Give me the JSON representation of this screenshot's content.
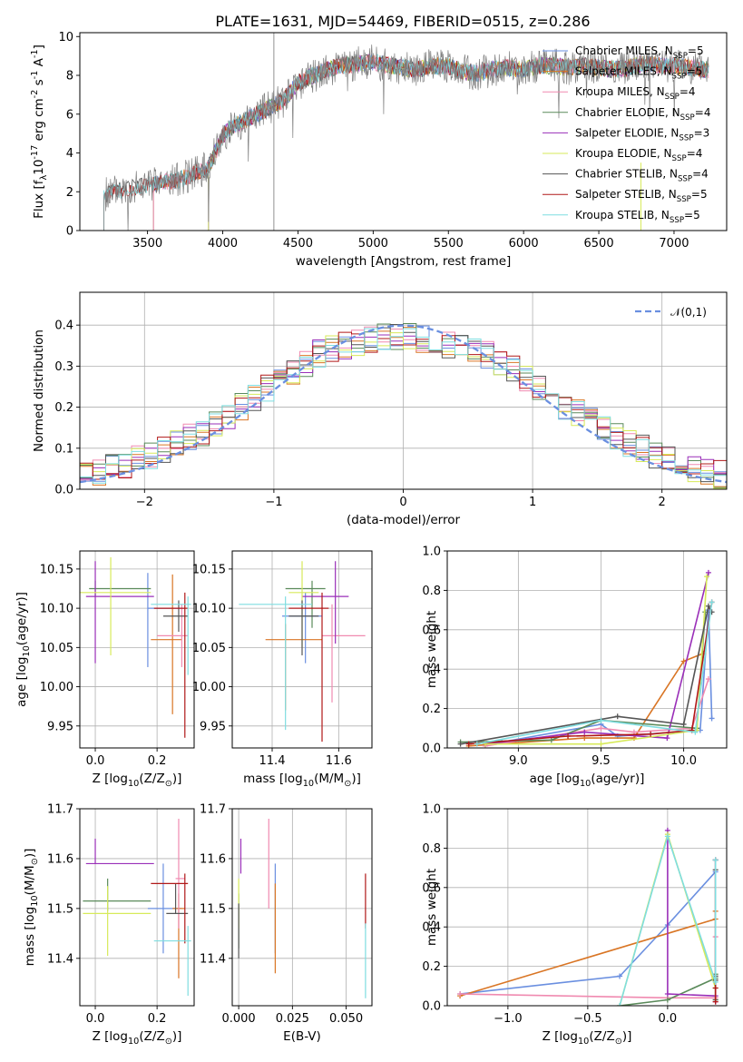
{
  "figure": {
    "title": "PLATE=1631, MJD=54469, FIBERID=0515, z=0.286"
  },
  "palette": [
    "#6a8fe0",
    "#d97524",
    "#f08ab0",
    "#5a8a5a",
    "#9a2fb8",
    "#d7ea5a",
    "#555555",
    "#b01818",
    "#7fdde0"
  ],
  "chart_data": [
    {
      "id": "spectrum",
      "type": "line",
      "xlabel": "wavelength [Angstrom, rest frame]",
      "ylabel": "Flux [f$_\\lambda$10$^{-17}$ erg cm$^{-2}$ s$^{-1}$ A$^{-1}$]",
      "xlim": [
        3050,
        7350
      ],
      "ylim": [
        0,
        10.2
      ],
      "xticks": [
        3500,
        4000,
        4500,
        5000,
        5500,
        6000,
        6500,
        7000
      ],
      "yticks": [
        0,
        2,
        4,
        6,
        8,
        10
      ],
      "grid": false,
      "legend_position": "right",
      "data_color": "#808080",
      "continuum": {
        "x": [
          3200,
          3300,
          3400,
          3500,
          3600,
          3700,
          3800,
          3900,
          3950,
          4000,
          4050,
          4100,
          4200,
          4300,
          4400,
          4500,
          4600,
          4700,
          4800,
          4900,
          5000,
          5100,
          5200,
          5300,
          5400,
          5500,
          5600,
          5700,
          5800,
          5900,
          6000,
          6100,
          6200,
          6300,
          6400,
          6500,
          6600,
          6700,
          6800,
          6900,
          7000,
          7100,
          7200
        ],
        "y": [
          1.8,
          2.1,
          2.2,
          2.3,
          2.5,
          2.6,
          2.9,
          3.2,
          4.0,
          4.9,
          5.3,
          5.5,
          5.9,
          6.3,
          6.7,
          7.6,
          8.0,
          8.3,
          8.5,
          8.6,
          8.7,
          8.5,
          8.4,
          8.3,
          8.5,
          8.5,
          8.2,
          8.1,
          8.3,
          8.4,
          8.3,
          8.5,
          8.5,
          8.4,
          8.5,
          8.4,
          8.3,
          8.4,
          8.6,
          8.5,
          8.5,
          8.4,
          8.3
        ]
      },
      "series": [
        {
          "name": "Chabrier MILES, N$_{SSP}$=5",
          "start": 3540
        },
        {
          "name": "Salpeter MILES, N$_{SSP}$=5",
          "start": 3540
        },
        {
          "name": "Kroupa MILES, N$_{SSP}$=4",
          "start": 3540
        },
        {
          "name": "Chabrier ELODIE, N$_{SSP}$=4",
          "start": 3905
        },
        {
          "name": "Salpeter ELODIE, N$_{SSP}$=3",
          "start": 3905
        },
        {
          "name": "Kroupa ELODIE, N$_{SSP}$=4",
          "start": 3905
        },
        {
          "name": "Chabrier STELIB, N$_{SSP}$=4",
          "start": 3210
        },
        {
          "name": "Salpeter STELIB, N$_{SSP}$=5",
          "start": 3210
        },
        {
          "name": "Kroupa STELIB, N$_{SSP}$=5",
          "start": 3210
        }
      ]
    },
    {
      "id": "residuals",
      "type": "line",
      "xlabel": "(data-model)/error",
      "ylabel": "Normed distribution",
      "xlim": [
        -2.5,
        2.5
      ],
      "ylim": [
        0,
        0.48
      ],
      "xticks": [
        -2,
        -1,
        0,
        1,
        2
      ],
      "yticks": [
        0.0,
        0.1,
        0.2,
        0.3,
        0.4
      ],
      "grid": true,
      "legend_position": "top-right",
      "gaussian": {
        "label": "$\\mathcal{N}(0,1)$",
        "color": "#6a8fe0",
        "mean": 0,
        "sigma": 1
      },
      "hist_centers": [
        -2.45,
        -2.35,
        -2.25,
        -2.15,
        -2.05,
        -1.95,
        -1.85,
        -1.75,
        -1.65,
        -1.55,
        -1.45,
        -1.35,
        -1.25,
        -1.15,
        -1.05,
        -0.95,
        -0.85,
        -0.75,
        -0.65,
        -0.55,
        -0.45,
        -0.35,
        -0.25,
        -0.15,
        -0.05,
        0.05,
        0.15,
        0.25,
        0.35,
        0.45,
        0.55,
        0.65,
        0.75,
        0.85,
        0.95,
        1.05,
        1.15,
        1.25,
        1.35,
        1.45,
        1.55,
        1.65,
        1.75,
        1.85,
        1.95,
        2.05,
        2.15,
        2.25,
        2.35,
        2.45
      ],
      "hist_base": [
        0.038,
        0.045,
        0.053,
        0.061,
        0.071,
        0.083,
        0.095,
        0.11,
        0.125,
        0.14,
        0.16,
        0.18,
        0.2,
        0.22,
        0.245,
        0.265,
        0.285,
        0.305,
        0.33,
        0.345,
        0.35,
        0.355,
        0.365,
        0.37,
        0.375,
        0.375,
        0.365,
        0.36,
        0.355,
        0.35,
        0.34,
        0.325,
        0.305,
        0.29,
        0.27,
        0.25,
        0.225,
        0.205,
        0.19,
        0.17,
        0.15,
        0.13,
        0.115,
        0.1,
        0.085,
        0.07,
        0.06,
        0.05,
        0.043,
        0.036
      ]
    },
    {
      "id": "age_vs_z",
      "type": "scatter",
      "xlabel": "Z [log$_{10}$($Z/Z_\\odot$)]",
      "ylabel": "age  [log$_{10}$($age/yr$)]",
      "xlim": [
        -0.05,
        0.32
      ],
      "ylim": [
        9.922,
        10.173
      ],
      "xticks": [
        0.0,
        0.2
      ],
      "yticks": [
        9.95,
        10.0,
        10.05,
        10.1,
        10.15
      ],
      "grid": true,
      "points": [
        {
          "x": 0.17,
          "xerr": [
            0.0,
            0.12
          ],
          "y": 10.1,
          "yerr": [
            0.075,
            0.045
          ]
        },
        {
          "x": 0.25,
          "xerr": [
            0.07,
            0.03
          ],
          "y": 10.06,
          "yerr": [
            0.095,
            0.083
          ]
        },
        {
          "x": 0.28,
          "xerr": [
            0.08,
            0.02
          ],
          "y": 10.065,
          "yerr": [
            0.04,
            0.04
          ]
        },
        {
          "x": 0.0,
          "xerr": [
            0.02,
            0.18
          ],
          "y": 10.125,
          "yerr": [
            0.01,
            0.01
          ]
        },
        {
          "x": 0.0,
          "xerr": [
            0.03,
            0.19
          ],
          "y": 10.115,
          "yerr": [
            0.085,
            0.045
          ]
        },
        {
          "x": 0.05,
          "xerr": [
            0.12,
            0.13
          ],
          "y": 10.12,
          "yerr": [
            0.08,
            0.045
          ]
        },
        {
          "x": 0.27,
          "xerr": [
            0.05,
            0.03
          ],
          "y": 10.09,
          "yerr": [
            0.02,
            0.02
          ]
        },
        {
          "x": 0.29,
          "xerr": [
            0.1,
            0.01
          ],
          "y": 10.1,
          "yerr": [
            0.165,
            0.02
          ]
        },
        {
          "x": 0.3,
          "xerr": [
            0.12,
            0.01
          ],
          "y": 10.105,
          "yerr": [
            0.09,
            0.01
          ]
        }
      ]
    },
    {
      "id": "age_vs_mass",
      "type": "scatter",
      "xlabel": "mass [log$_{10}$($M/M_\\odot$)]",
      "ylabel": "",
      "xlim": [
        11.28,
        11.7
      ],
      "ylim": [
        9.922,
        10.173
      ],
      "xticks": [
        11.4,
        11.6
      ],
      "yticks": [
        9.95,
        10.0,
        10.05,
        10.1,
        10.15
      ],
      "grid": true,
      "points": [
        {
          "x": 11.5,
          "xerr": [
            0.07,
            0.05
          ],
          "y": 10.09,
          "yerr": [
            0.06,
            0.03
          ]
        },
        {
          "x": 11.44,
          "xerr": [
            0.06,
            0.11
          ],
          "y": 10.06,
          "yerr": [
            0.09,
            0.02
          ]
        },
        {
          "x": 11.58,
          "xerr": [
            0.03,
            0.1
          ],
          "y": 10.065,
          "yerr": [
            0.085,
            0.04
          ]
        },
        {
          "x": 11.52,
          "xerr": [
            0.08,
            0.04
          ],
          "y": 10.125,
          "yerr": [
            0.05,
            0.01
          ]
        },
        {
          "x": 11.59,
          "xerr": [
            0.1,
            0.04
          ],
          "y": 10.115,
          "yerr": [
            0.06,
            0.045
          ]
        },
        {
          "x": 11.49,
          "xerr": [
            0.04,
            0.05
          ],
          "y": 10.12,
          "yerr": [
            0.07,
            0.04
          ]
        },
        {
          "x": 11.49,
          "xerr": [
            0.04,
            0.05
          ],
          "y": 10.09,
          "yerr": [
            0.05,
            0.02
          ]
        },
        {
          "x": 11.55,
          "xerr": [
            0.1,
            0.02
          ],
          "y": 10.1,
          "yerr": [
            0.17,
            0.02
          ]
        },
        {
          "x": 11.44,
          "xerr": [
            0.14,
            0.08
          ],
          "y": 10.105,
          "yerr": [
            0.16,
            0.01
          ]
        }
      ]
    },
    {
      "id": "weight_vs_age",
      "type": "line",
      "xlabel": "age  [log$_{10}$($age/yr$)]",
      "ylabel": "mass weight",
      "xlim": [
        8.57,
        10.26
      ],
      "ylim": [
        0,
        1.0
      ],
      "xticks": [
        9.0,
        9.5,
        10.0
      ],
      "yticks": [
        0.0,
        0.2,
        0.4,
        0.6,
        0.8,
        1.0
      ],
      "grid": true,
      "series": [
        {
          "x": [
            8.9,
            9.5,
            9.6,
            10.1,
            10.15,
            10.17
          ],
          "y": [
            0.03,
            0.12,
            0.06,
            0.09,
            0.7,
            0.15
          ]
        },
        {
          "x": [
            8.7,
            9.4,
            9.7,
            10.0,
            10.12
          ],
          "y": [
            0.01,
            0.05,
            0.05,
            0.44,
            0.48
          ]
        },
        {
          "x": [
            8.8,
            9.5,
            9.7,
            10.05,
            10.15
          ],
          "y": [
            0.01,
            0.1,
            0.08,
            0.1,
            0.35
          ]
        },
        {
          "x": [
            8.65,
            9.2,
            9.5,
            10.08,
            10.13
          ],
          "y": [
            0.03,
            0.04,
            0.14,
            0.1,
            0.69
          ]
        },
        {
          "x": [
            8.8,
            9.4,
            9.9,
            10.15
          ],
          "y": [
            0.02,
            0.08,
            0.05,
            0.89
          ]
        },
        {
          "x": [
            8.8,
            9.5,
            10.08,
            10.14
          ],
          "y": [
            0.02,
            0.02,
            0.09,
            0.87
          ]
        },
        {
          "x": [
            8.65,
            9.6,
            10.0,
            10.15,
            10.17
          ],
          "y": [
            0.02,
            0.16,
            0.12,
            0.72,
            0.69
          ]
        },
        {
          "x": [
            8.7,
            9.3,
            9.8,
            10.05,
            10.17
          ],
          "y": [
            0.02,
            0.06,
            0.07,
            0.09,
            0.74
          ]
        },
        {
          "x": [
            8.75,
            9.5,
            10.07,
            10.17
          ],
          "y": [
            0.02,
            0.14,
            0.08,
            0.74
          ]
        }
      ]
    },
    {
      "id": "mass_vs_z",
      "type": "scatter",
      "xlabel": "Z [log$_{10}$($Z/Z_\\odot$)]",
      "ylabel": "mass [log$_{10}$($M/M_\\odot$)]",
      "xlim": [
        -0.05,
        0.32
      ],
      "ylim": [
        11.305,
        11.7
      ],
      "xticks": [
        0.0,
        0.2
      ],
      "yticks": [
        11.4,
        11.5,
        11.6,
        11.7
      ],
      "grid": true,
      "points": [
        {
          "x": 0.22,
          "xerr": [
            0.05,
            0.06
          ],
          "y": 11.5,
          "yerr": [
            0.09,
            0.09
          ]
        },
        {
          "x": 0.27,
          "xerr": [
            0.02,
            0.02
          ],
          "y": 11.5,
          "yerr": [
            0.14,
            0.03
          ]
        },
        {
          "x": 0.27,
          "xerr": [
            0.01,
            0.02
          ],
          "y": 11.56,
          "yerr": [
            0.1,
            0.12
          ]
        },
        {
          "x": 0.04,
          "xerr": [
            0.08,
            0.14
          ],
          "y": 11.515,
          "yerr": [
            0.02,
            0.045
          ]
        },
        {
          "x": 0.0,
          "xerr": [
            0.03,
            0.19
          ],
          "y": 11.59,
          "yerr": [
            0.0,
            0.05
          ]
        },
        {
          "x": 0.04,
          "xerr": [
            0.08,
            0.14
          ],
          "y": 11.49,
          "yerr": [
            0.085,
            0.055
          ]
        },
        {
          "x": 0.26,
          "xerr": [
            0.03,
            0.04
          ],
          "y": 11.49,
          "yerr": [
            0.0,
            0.06
          ]
        },
        {
          "x": 0.29,
          "xerr": [
            0.11,
            0.01
          ],
          "y": 11.55,
          "yerr": [
            0.12,
            0.02
          ]
        },
        {
          "x": 0.3,
          "xerr": [
            0.11,
            0.01
          ],
          "y": 11.435,
          "yerr": [
            0.11,
            0.03
          ]
        }
      ]
    },
    {
      "id": "mass_vs_ebv",
      "type": "scatter",
      "xlabel": "E(B-V)",
      "ylabel": "",
      "xlim": [
        -0.003,
        0.062
      ],
      "ylim": [
        11.305,
        11.7
      ],
      "xticks": [
        0.0,
        0.025,
        0.05
      ],
      "yticks": [
        11.4,
        11.5,
        11.6,
        11.7
      ],
      "grid": true,
      "points": [
        {
          "x": 0.017,
          "y": 11.53,
          "yerr": [
            0.12,
            0.06
          ]
        },
        {
          "x": 0.017,
          "y": 11.47,
          "yerr": [
            0.1,
            0.08
          ]
        },
        {
          "x": 0.014,
          "y": 11.6,
          "yerr": [
            0.1,
            0.08
          ]
        },
        {
          "x": 0.0,
          "y": 11.48,
          "yerr": [
            0.06,
            0.05
          ]
        },
        {
          "x": 0.001,
          "y": 11.57,
          "yerr": [
            0.0,
            0.07
          ]
        },
        {
          "x": 0.0,
          "y": 11.51,
          "yerr": [
            0.05,
            0.05
          ]
        },
        {
          "x": 0.0,
          "y": 11.46,
          "yerr": [
            0.06,
            0.05
          ]
        },
        {
          "x": 0.059,
          "y": 11.52,
          "yerr": [
            0.06,
            0.05
          ]
        },
        {
          "x": 0.059,
          "y": 11.42,
          "yerr": [
            0.1,
            0.05
          ]
        }
      ]
    },
    {
      "id": "weight_vs_z",
      "type": "line",
      "xlabel": "Z [log$_{10}$($Z/Z_\\odot$)]",
      "ylabel": "mass weight",
      "xlim": [
        -1.38,
        0.37
      ],
      "ylim": [
        0,
        1.0
      ],
      "xticks": [
        -1.0,
        -0.5,
        0.0
      ],
      "yticks": [
        0.0,
        0.2,
        0.4,
        0.6,
        0.8,
        1.0
      ],
      "grid": true,
      "series": [
        {
          "x": [
            -1.3,
            -0.3,
            0.0,
            0.3,
            0.3
          ],
          "y": [
            0.06,
            0.15,
            0.41,
            0.68,
            0.74
          ]
        },
        {
          "x": [
            -1.3,
            0.3,
            0.3
          ],
          "y": [
            0.05,
            0.44,
            0.48
          ]
        },
        {
          "x": [
            -1.3,
            0.0,
            0.3,
            0.3
          ],
          "y": [
            0.06,
            0.04,
            0.04,
            0.35
          ]
        },
        {
          "x": [
            -0.3,
            0.0,
            0.3,
            0.3
          ],
          "y": [
            0.0,
            0.03,
            0.14,
            0.16
          ]
        },
        {
          "x": [
            0.0,
            0.0,
            0.3,
            0.3
          ],
          "y": [
            0.89,
            0.06,
            0.05,
            0.02
          ]
        },
        {
          "x": [
            -0.3,
            0.0,
            0.3,
            0.3
          ],
          "y": [
            0.0,
            0.87,
            0.09,
            0.03
          ]
        },
        {
          "x": [
            0.3,
            0.3,
            0.3,
            0.3
          ],
          "y": [
            0.69,
            0.13,
            0.15,
            0.03
          ]
        },
        {
          "x": [
            0.3,
            0.3,
            0.3
          ],
          "y": [
            0.74,
            0.09,
            0.02
          ]
        },
        {
          "x": [
            -0.3,
            0.0,
            0.3,
            0.3
          ],
          "y": [
            0.0,
            0.86,
            0.12,
            0.74
          ]
        }
      ]
    }
  ]
}
